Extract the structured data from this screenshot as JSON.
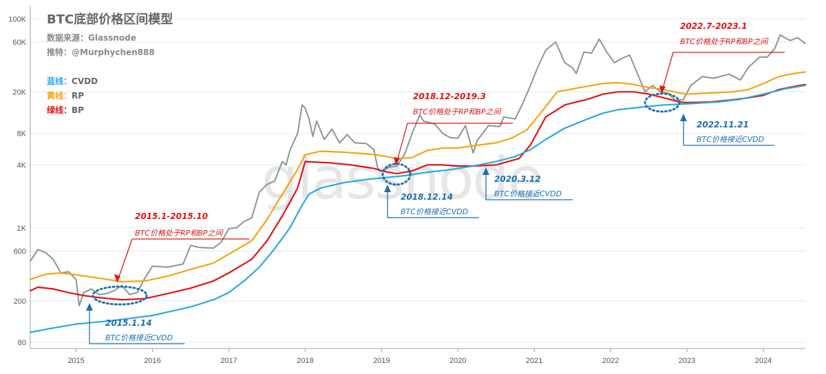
{
  "chart_data": {
    "type": "line",
    "title": "BTC底部价格区间模型",
    "source": "数据来源：Glassnode",
    "author": "推特：@Murphychen888",
    "watermark": "glassnode",
    "y_scale": "log",
    "ylim": [
      70,
      130000
    ],
    "xlim": [
      2014.4,
      2024.55
    ],
    "y_ticks": [
      {
        "value": 80,
        "label": "80"
      },
      {
        "value": 200,
        "label": "200"
      },
      {
        "value": 600,
        "label": "600"
      },
      {
        "value": 1000,
        "label": "1K"
      },
      {
        "value": 4000,
        "label": "4K"
      },
      {
        "value": 8000,
        "label": "8K"
      },
      {
        "value": 20000,
        "label": "20K"
      },
      {
        "value": 60000,
        "label": "60K"
      },
      {
        "value": 100000,
        "label": "100K"
      }
    ],
    "x_ticks": [
      {
        "value": 2015,
        "label": "2015"
      },
      {
        "value": 2016,
        "label": "2016"
      },
      {
        "value": 2017,
        "label": "2017"
      },
      {
        "value": 2018,
        "label": "2018"
      },
      {
        "value": 2019,
        "label": "2019"
      },
      {
        "value": 2020,
        "label": "2020"
      },
      {
        "value": 2021,
        "label": "2021"
      },
      {
        "value": 2022,
        "label": "2022"
      },
      {
        "value": 2023,
        "label": "2023"
      },
      {
        "value": 2024,
        "label": "2024"
      }
    ],
    "legend": [
      {
        "prefix": "蓝线：",
        "name": "CVDD",
        "color": "#2aa9e0"
      },
      {
        "prefix": "黄线：",
        "name": "RP",
        "color": "#f2a516"
      },
      {
        "prefix": "绿线：",
        "name": "BP",
        "color": "#e01414"
      }
    ],
    "series": [
      {
        "name": "BTC Price",
        "color": "#8a9595",
        "points": [
          [
            2014.4,
            480
          ],
          [
            2014.5,
            620
          ],
          [
            2014.6,
            580
          ],
          [
            2014.7,
            500
          ],
          [
            2014.8,
            370
          ],
          [
            2014.9,
            380
          ],
          [
            2015.0,
            320
          ],
          [
            2015.04,
            180
          ],
          [
            2015.1,
            240
          ],
          [
            2015.2,
            260
          ],
          [
            2015.3,
            230
          ],
          [
            2015.4,
            235
          ],
          [
            2015.5,
            250
          ],
          [
            2015.6,
            280
          ],
          [
            2015.7,
            230
          ],
          [
            2015.8,
            240
          ],
          [
            2015.9,
            330
          ],
          [
            2016.0,
            430
          ],
          [
            2016.2,
            420
          ],
          [
            2016.4,
            450
          ],
          [
            2016.5,
            680
          ],
          [
            2016.6,
            650
          ],
          [
            2016.8,
            640
          ],
          [
            2016.9,
            730
          ],
          [
            2017.0,
            980
          ],
          [
            2017.1,
            1000
          ],
          [
            2017.2,
            1150
          ],
          [
            2017.3,
            1250
          ],
          [
            2017.4,
            2200
          ],
          [
            2017.5,
            2600
          ],
          [
            2017.6,
            2800
          ],
          [
            2017.7,
            4300
          ],
          [
            2017.75,
            4000
          ],
          [
            2017.8,
            5500
          ],
          [
            2017.9,
            8000
          ],
          [
            2017.96,
            15000
          ],
          [
            2018.0,
            14000
          ],
          [
            2018.05,
            11000
          ],
          [
            2018.1,
            7500
          ],
          [
            2018.15,
            10500
          ],
          [
            2018.25,
            7000
          ],
          [
            2018.35,
            8800
          ],
          [
            2018.45,
            6500
          ],
          [
            2018.55,
            7800
          ],
          [
            2018.65,
            6500
          ],
          [
            2018.8,
            6400
          ],
          [
            2018.9,
            5600
          ],
          [
            2018.95,
            3700
          ],
          [
            2019.0,
            3500
          ],
          [
            2019.1,
            3800
          ],
          [
            2019.2,
            3900
          ],
          [
            2019.3,
            5000
          ],
          [
            2019.4,
            8000
          ],
          [
            2019.5,
            12000
          ],
          [
            2019.55,
            10500
          ],
          [
            2019.7,
            9800
          ],
          [
            2019.8,
            8000
          ],
          [
            2019.9,
            7300
          ],
          [
            2020.0,
            7200
          ],
          [
            2020.1,
            9500
          ],
          [
            2020.2,
            5200
          ],
          [
            2020.25,
            6800
          ],
          [
            2020.4,
            9500
          ],
          [
            2020.55,
            9300
          ],
          [
            2020.6,
            11500
          ],
          [
            2020.75,
            11000
          ],
          [
            2020.85,
            15500
          ],
          [
            2020.95,
            23000
          ],
          [
            2021.05,
            35000
          ],
          [
            2021.15,
            50000
          ],
          [
            2021.28,
            60000
          ],
          [
            2021.4,
            38000
          ],
          [
            2021.5,
            34000
          ],
          [
            2021.55,
            30000
          ],
          [
            2021.65,
            48000
          ],
          [
            2021.75,
            47000
          ],
          [
            2021.85,
            64000
          ],
          [
            2021.95,
            48000
          ],
          [
            2022.05,
            38000
          ],
          [
            2022.15,
            42000
          ],
          [
            2022.25,
            45000
          ],
          [
            2022.35,
            30000
          ],
          [
            2022.45,
            20000
          ],
          [
            2022.55,
            23000
          ],
          [
            2022.65,
            20000
          ],
          [
            2022.75,
            19500
          ],
          [
            2022.85,
            16500
          ],
          [
            2022.95,
            16800
          ],
          [
            2023.05,
            23000
          ],
          [
            2023.2,
            28000
          ],
          [
            2023.35,
            27000
          ],
          [
            2023.55,
            29500
          ],
          [
            2023.7,
            26000
          ],
          [
            2023.8,
            34000
          ],
          [
            2023.95,
            43000
          ],
          [
            2024.05,
            43000
          ],
          [
            2024.15,
            52000
          ],
          [
            2024.22,
            70000
          ],
          [
            2024.35,
            62000
          ],
          [
            2024.45,
            66000
          ],
          [
            2024.55,
            58000
          ]
        ]
      },
      {
        "name": "RP",
        "color": "#f2a516",
        "points": [
          [
            2014.4,
            320
          ],
          [
            2014.6,
            360
          ],
          [
            2014.8,
            370
          ],
          [
            2015.0,
            355
          ],
          [
            2015.3,
            330
          ],
          [
            2015.6,
            305
          ],
          [
            2015.9,
            310
          ],
          [
            2016.2,
            345
          ],
          [
            2016.5,
            400
          ],
          [
            2016.8,
            460
          ],
          [
            2017.0,
            560
          ],
          [
            2017.3,
            750
          ],
          [
            2017.5,
            1200
          ],
          [
            2017.7,
            2100
          ],
          [
            2017.9,
            3600
          ],
          [
            2018.0,
            5000
          ],
          [
            2018.2,
            5400
          ],
          [
            2018.5,
            5300
          ],
          [
            2018.8,
            5100
          ],
          [
            2019.0,
            4900
          ],
          [
            2019.2,
            4600
          ],
          [
            2019.4,
            4700
          ],
          [
            2019.6,
            5500
          ],
          [
            2019.8,
            5800
          ],
          [
            2020.0,
            5800
          ],
          [
            2020.2,
            6100
          ],
          [
            2020.5,
            6500
          ],
          [
            2020.7,
            7200
          ],
          [
            2020.9,
            8600
          ],
          [
            2021.1,
            13000
          ],
          [
            2021.3,
            20000
          ],
          [
            2021.6,
            22000
          ],
          [
            2021.9,
            24000
          ],
          [
            2022.1,
            24500
          ],
          [
            2022.3,
            23500
          ],
          [
            2022.5,
            22000
          ],
          [
            2022.7,
            21000
          ],
          [
            2022.9,
            19500
          ],
          [
            2023.0,
            19000
          ],
          [
            2023.3,
            19500
          ],
          [
            2023.6,
            20000
          ],
          [
            2023.8,
            21000
          ],
          [
            2024.0,
            24000
          ],
          [
            2024.2,
            28000
          ],
          [
            2024.4,
            30000
          ],
          [
            2024.55,
            31000
          ]
        ]
      },
      {
        "name": "BP",
        "color": "#e01414",
        "points": [
          [
            2014.4,
            250
          ],
          [
            2014.5,
            270
          ],
          [
            2014.7,
            260
          ],
          [
            2014.9,
            240
          ],
          [
            2015.1,
            225
          ],
          [
            2015.3,
            215
          ],
          [
            2015.6,
            205
          ],
          [
            2015.9,
            210
          ],
          [
            2016.2,
            235
          ],
          [
            2016.5,
            265
          ],
          [
            2016.8,
            310
          ],
          [
            2017.0,
            370
          ],
          [
            2017.3,
            500
          ],
          [
            2017.5,
            750
          ],
          [
            2017.7,
            1300
          ],
          [
            2017.9,
            2400
          ],
          [
            2018.0,
            4300
          ],
          [
            2018.3,
            4200
          ],
          [
            2018.6,
            4000
          ],
          [
            2018.9,
            3700
          ],
          [
            2019.0,
            3500
          ],
          [
            2019.2,
            3300
          ],
          [
            2019.4,
            3500
          ],
          [
            2019.6,
            4000
          ],
          [
            2019.8,
            4000
          ],
          [
            2020.0,
            3900
          ],
          [
            2020.2,
            3900
          ],
          [
            2020.5,
            4000
          ],
          [
            2020.8,
            4600
          ],
          [
            2020.95,
            6200
          ],
          [
            2021.15,
            11500
          ],
          [
            2021.4,
            15000
          ],
          [
            2021.7,
            17000
          ],
          [
            2021.9,
            19000
          ],
          [
            2022.1,
            20000
          ],
          [
            2022.3,
            20000
          ],
          [
            2022.5,
            19000
          ],
          [
            2022.7,
            17500
          ],
          [
            2022.9,
            16000
          ],
          [
            2023.0,
            15800
          ],
          [
            2023.3,
            16000
          ],
          [
            2023.6,
            16800
          ],
          [
            2023.8,
            17500
          ],
          [
            2024.0,
            18500
          ],
          [
            2024.2,
            21000
          ],
          [
            2024.4,
            22500
          ],
          [
            2024.55,
            23500
          ]
        ]
      },
      {
        "name": "CVDD",
        "color": "#2aa9e0",
        "points": [
          [
            2014.4,
            100
          ],
          [
            2014.7,
            110
          ],
          [
            2015.0,
            120
          ],
          [
            2015.5,
            130
          ],
          [
            2016.0,
            145
          ],
          [
            2016.5,
            175
          ],
          [
            2016.8,
            205
          ],
          [
            2017.0,
            240
          ],
          [
            2017.2,
            310
          ],
          [
            2017.4,
            420
          ],
          [
            2017.6,
            630
          ],
          [
            2017.8,
            1000
          ],
          [
            2017.95,
            1600
          ],
          [
            2018.05,
            2100
          ],
          [
            2018.2,
            2400
          ],
          [
            2018.5,
            2700
          ],
          [
            2018.8,
            2900
          ],
          [
            2019.0,
            3000
          ],
          [
            2019.3,
            3150
          ],
          [
            2019.6,
            3400
          ],
          [
            2019.9,
            3600
          ],
          [
            2020.2,
            3900
          ],
          [
            2020.5,
            4300
          ],
          [
            2020.75,
            4800
          ],
          [
            2020.95,
            5600
          ],
          [
            2021.15,
            7000
          ],
          [
            2021.4,
            9000
          ],
          [
            2021.7,
            11000
          ],
          [
            2021.9,
            12500
          ],
          [
            2022.1,
            13500
          ],
          [
            2022.3,
            14000
          ],
          [
            2022.5,
            14500
          ],
          [
            2022.7,
            15000
          ],
          [
            2022.9,
            15200
          ],
          [
            2023.1,
            15500
          ],
          [
            2023.4,
            16000
          ],
          [
            2023.7,
            17000
          ],
          [
            2024.0,
            19000
          ],
          [
            2024.3,
            21500
          ],
          [
            2024.55,
            23000
          ]
        ]
      }
    ],
    "annotations": [
      {
        "type": "red",
        "date": "2015.1-2015.10",
        "desc": "BTC价格处于RP和BP之间"
      },
      {
        "type": "blue",
        "date": "2015.1.14",
        "desc": "BTC价格接近CVDD"
      },
      {
        "type": "red",
        "date": "2018.12-2019.3",
        "desc": "BTC价格处于RP和BP之间"
      },
      {
        "type": "blue",
        "date": "2018.12.14",
        "desc": "BTC价格接近CVDD"
      },
      {
        "type": "blue",
        "date": "2020.3.12",
        "desc": "BTC价格接近CVDD"
      },
      {
        "type": "red",
        "date": "2022.7-2023.1",
        "desc": "BTC价格处于RP和BP之间"
      },
      {
        "type": "blue",
        "date": "2022.11.21",
        "desc": "BTC价格接近CVDD"
      }
    ]
  }
}
